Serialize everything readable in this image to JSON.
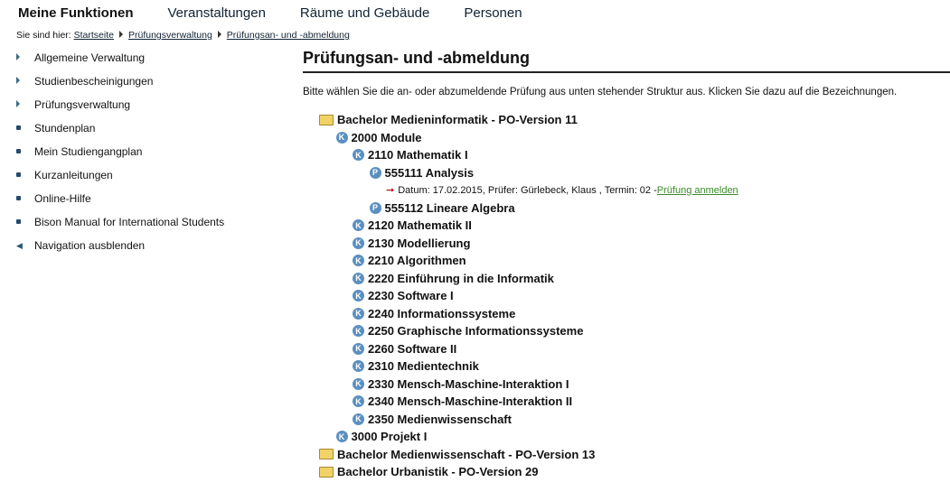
{
  "topnav": [
    "Meine Funktionen",
    "Veranstaltungen",
    "Räume und Gebäude",
    "Personen"
  ],
  "breadcrumb": {
    "prefix": "Sie sind hier:",
    "items": [
      "Startseite",
      "Prüfungsverwaltung",
      "Prüfungsan- und -abmeldung"
    ]
  },
  "sidebar": [
    {
      "label": "Allgemeine Verwaltung",
      "icon": "triangle"
    },
    {
      "label": "Studienbescheinigungen",
      "icon": "triangle"
    },
    {
      "label": "Prüfungsverwaltung",
      "icon": "triangle"
    },
    {
      "label": "Stundenplan",
      "icon": "bullet"
    },
    {
      "label": "Mein Studiengangplan",
      "icon": "bullet"
    },
    {
      "label": "Kurzanleitungen",
      "icon": "bullet"
    },
    {
      "label": "Online-Hilfe",
      "icon": "bullet"
    },
    {
      "label": "Bison Manual for International Students",
      "icon": "bullet"
    },
    {
      "label": "Navigation ausblenden",
      "icon": "arrow-left"
    }
  ],
  "title": "Prüfungsan- und -abmeldung",
  "intro": "Bitte wählen Sie die an- oder abzumeldende Prüfung aus unten stehender Struktur aus. Klicken Sie dazu auf die Bezeichnungen.",
  "tree": [
    {
      "level": 0,
      "type": "folder",
      "label": "Bachelor Medieninformatik - PO-Version 11"
    },
    {
      "level": 1,
      "type": "K",
      "label": "2000 Module"
    },
    {
      "level": 2,
      "type": "K",
      "label": "2110 Mathematik I"
    },
    {
      "level": 3,
      "type": "P",
      "label": "555111 Analysis"
    },
    {
      "level": 4,
      "type": "detail",
      "label": "Datum: 17.02.2015, Prüfer: Gürlebeck, Klaus , Termin: 02 - ",
      "link": "Prüfung anmelden"
    },
    {
      "level": 3,
      "type": "P",
      "label": "555112 Lineare Algebra"
    },
    {
      "level": 2,
      "type": "K",
      "label": "2120 Mathematik II"
    },
    {
      "level": 2,
      "type": "K",
      "label": "2130 Modellierung"
    },
    {
      "level": 2,
      "type": "K",
      "label": "2210 Algorithmen"
    },
    {
      "level": 2,
      "type": "K",
      "label": "2220 Einführung in die Informatik"
    },
    {
      "level": 2,
      "type": "K",
      "label": "2230 Software I"
    },
    {
      "level": 2,
      "type": "K",
      "label": "2240 Informationssysteme"
    },
    {
      "level": 2,
      "type": "K",
      "label": "2250 Graphische Informationssysteme"
    },
    {
      "level": 2,
      "type": "K",
      "label": "2260 Software II"
    },
    {
      "level": 2,
      "type": "K",
      "label": "2310 Medientechnik"
    },
    {
      "level": 2,
      "type": "K",
      "label": "2330 Mensch-Maschine-Interaktion I"
    },
    {
      "level": 2,
      "type": "K",
      "label": "2340 Mensch-Maschine-Interaktion II"
    },
    {
      "level": 2,
      "type": "K",
      "label": "2350 Medienwissenschaft"
    },
    {
      "level": 1,
      "type": "K",
      "label": "3000 Projekt I"
    },
    {
      "level": 0,
      "type": "folder",
      "label": "Bachelor Medienwissenschaft - PO-Version 13"
    },
    {
      "level": 0,
      "type": "folder",
      "label": "Bachelor Urbanistik - PO-Version 29"
    }
  ]
}
